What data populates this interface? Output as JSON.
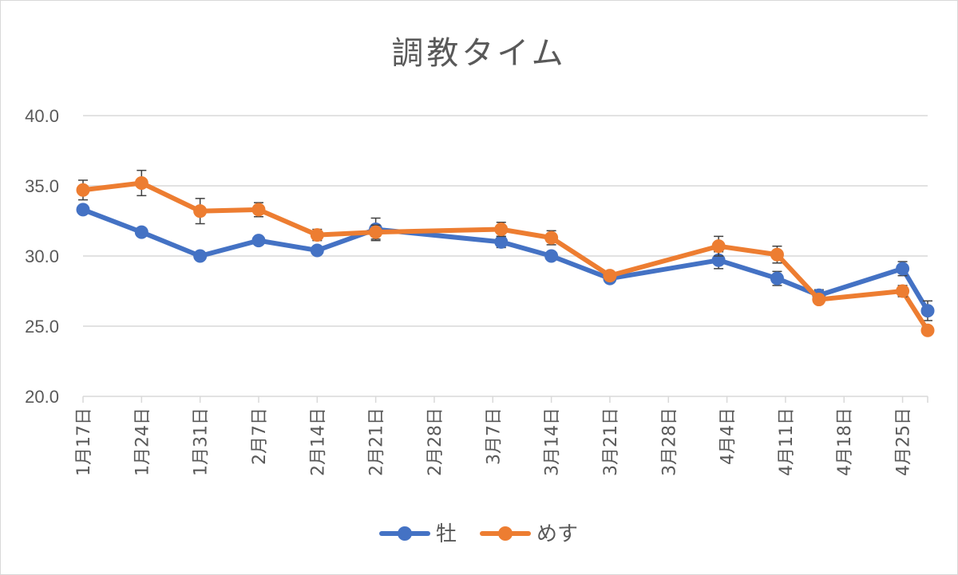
{
  "chart_data": {
    "type": "line",
    "title": "調教タイム",
    "ylim": [
      20,
      40
    ],
    "yticks": [
      "20.0",
      "25.0",
      "30.0",
      "35.0",
      "40.0"
    ],
    "x_date_ticks": [
      "1月17日",
      "1月24日",
      "1月31日",
      "2月7日",
      "2月14日",
      "2月21日",
      "2月28日",
      "3月7日",
      "3月14日",
      "3月21日",
      "3月28日",
      "4月4日",
      "4月11日",
      "4月18日",
      "4月25日"
    ],
    "x_range": [
      "1月17日",
      "4月28日"
    ],
    "grid": true,
    "legend_position": "bottom",
    "series": [
      {
        "name": "牡",
        "color": "#4472C4",
        "points": [
          {
            "x": "1月17日",
            "y": 33.3,
            "err": 0.3
          },
          {
            "x": "1月24日",
            "y": 31.7,
            "err": 0.3
          },
          {
            "x": "1月31日",
            "y": 30.0,
            "err": 0.2
          },
          {
            "x": "2月7日",
            "y": 31.1,
            "err": 0.2
          },
          {
            "x": "2月14日",
            "y": 30.4,
            "err": 0.2
          },
          {
            "x": "2月21日",
            "y": 31.9,
            "err": 0.8
          },
          {
            "x": "3月8日",
            "y": 31.0,
            "err": 0.4
          },
          {
            "x": "3月14日",
            "y": 30.0,
            "err": 0.2
          },
          {
            "x": "3月21日",
            "y": 28.4,
            "err": 0.3
          },
          {
            "x": "4月3日",
            "y": 29.7,
            "err": 0.6
          },
          {
            "x": "4月10日",
            "y": 28.4,
            "err": 0.5
          },
          {
            "x": "4月15日",
            "y": 27.2,
            "err": 0.4
          },
          {
            "x": "4月25日",
            "y": 29.1,
            "err": 0.5
          },
          {
            "x": "4月28日",
            "y": 26.1,
            "err": 0.7
          }
        ]
      },
      {
        "name": "めす",
        "color": "#ED7D31",
        "points": [
          {
            "x": "1月17日",
            "y": 34.7,
            "err": 0.7
          },
          {
            "x": "1月24日",
            "y": 35.2,
            "err": 0.9
          },
          {
            "x": "1月31日",
            "y": 33.2,
            "err": 0.9
          },
          {
            "x": "2月7日",
            "y": 33.3,
            "err": 0.5
          },
          {
            "x": "2月14日",
            "y": 31.5,
            "err": 0.4
          },
          {
            "x": "2月21日",
            "y": 31.7,
            "err": 0.5
          },
          {
            "x": "3月8日",
            "y": 31.9,
            "err": 0.5
          },
          {
            "x": "3月14日",
            "y": 31.3,
            "err": 0.5
          },
          {
            "x": "3月21日",
            "y": 28.6,
            "err": 0.3
          },
          {
            "x": "4月3日",
            "y": 30.7,
            "err": 0.7
          },
          {
            "x": "4月10日",
            "y": 30.1,
            "err": 0.6
          },
          {
            "x": "4月15日",
            "y": 26.9,
            "err": 0.3
          },
          {
            "x": "4月25日",
            "y": 27.5,
            "err": 0.4
          },
          {
            "x": "4月28日",
            "y": 24.7,
            "err": 0.3
          }
        ]
      }
    ]
  }
}
